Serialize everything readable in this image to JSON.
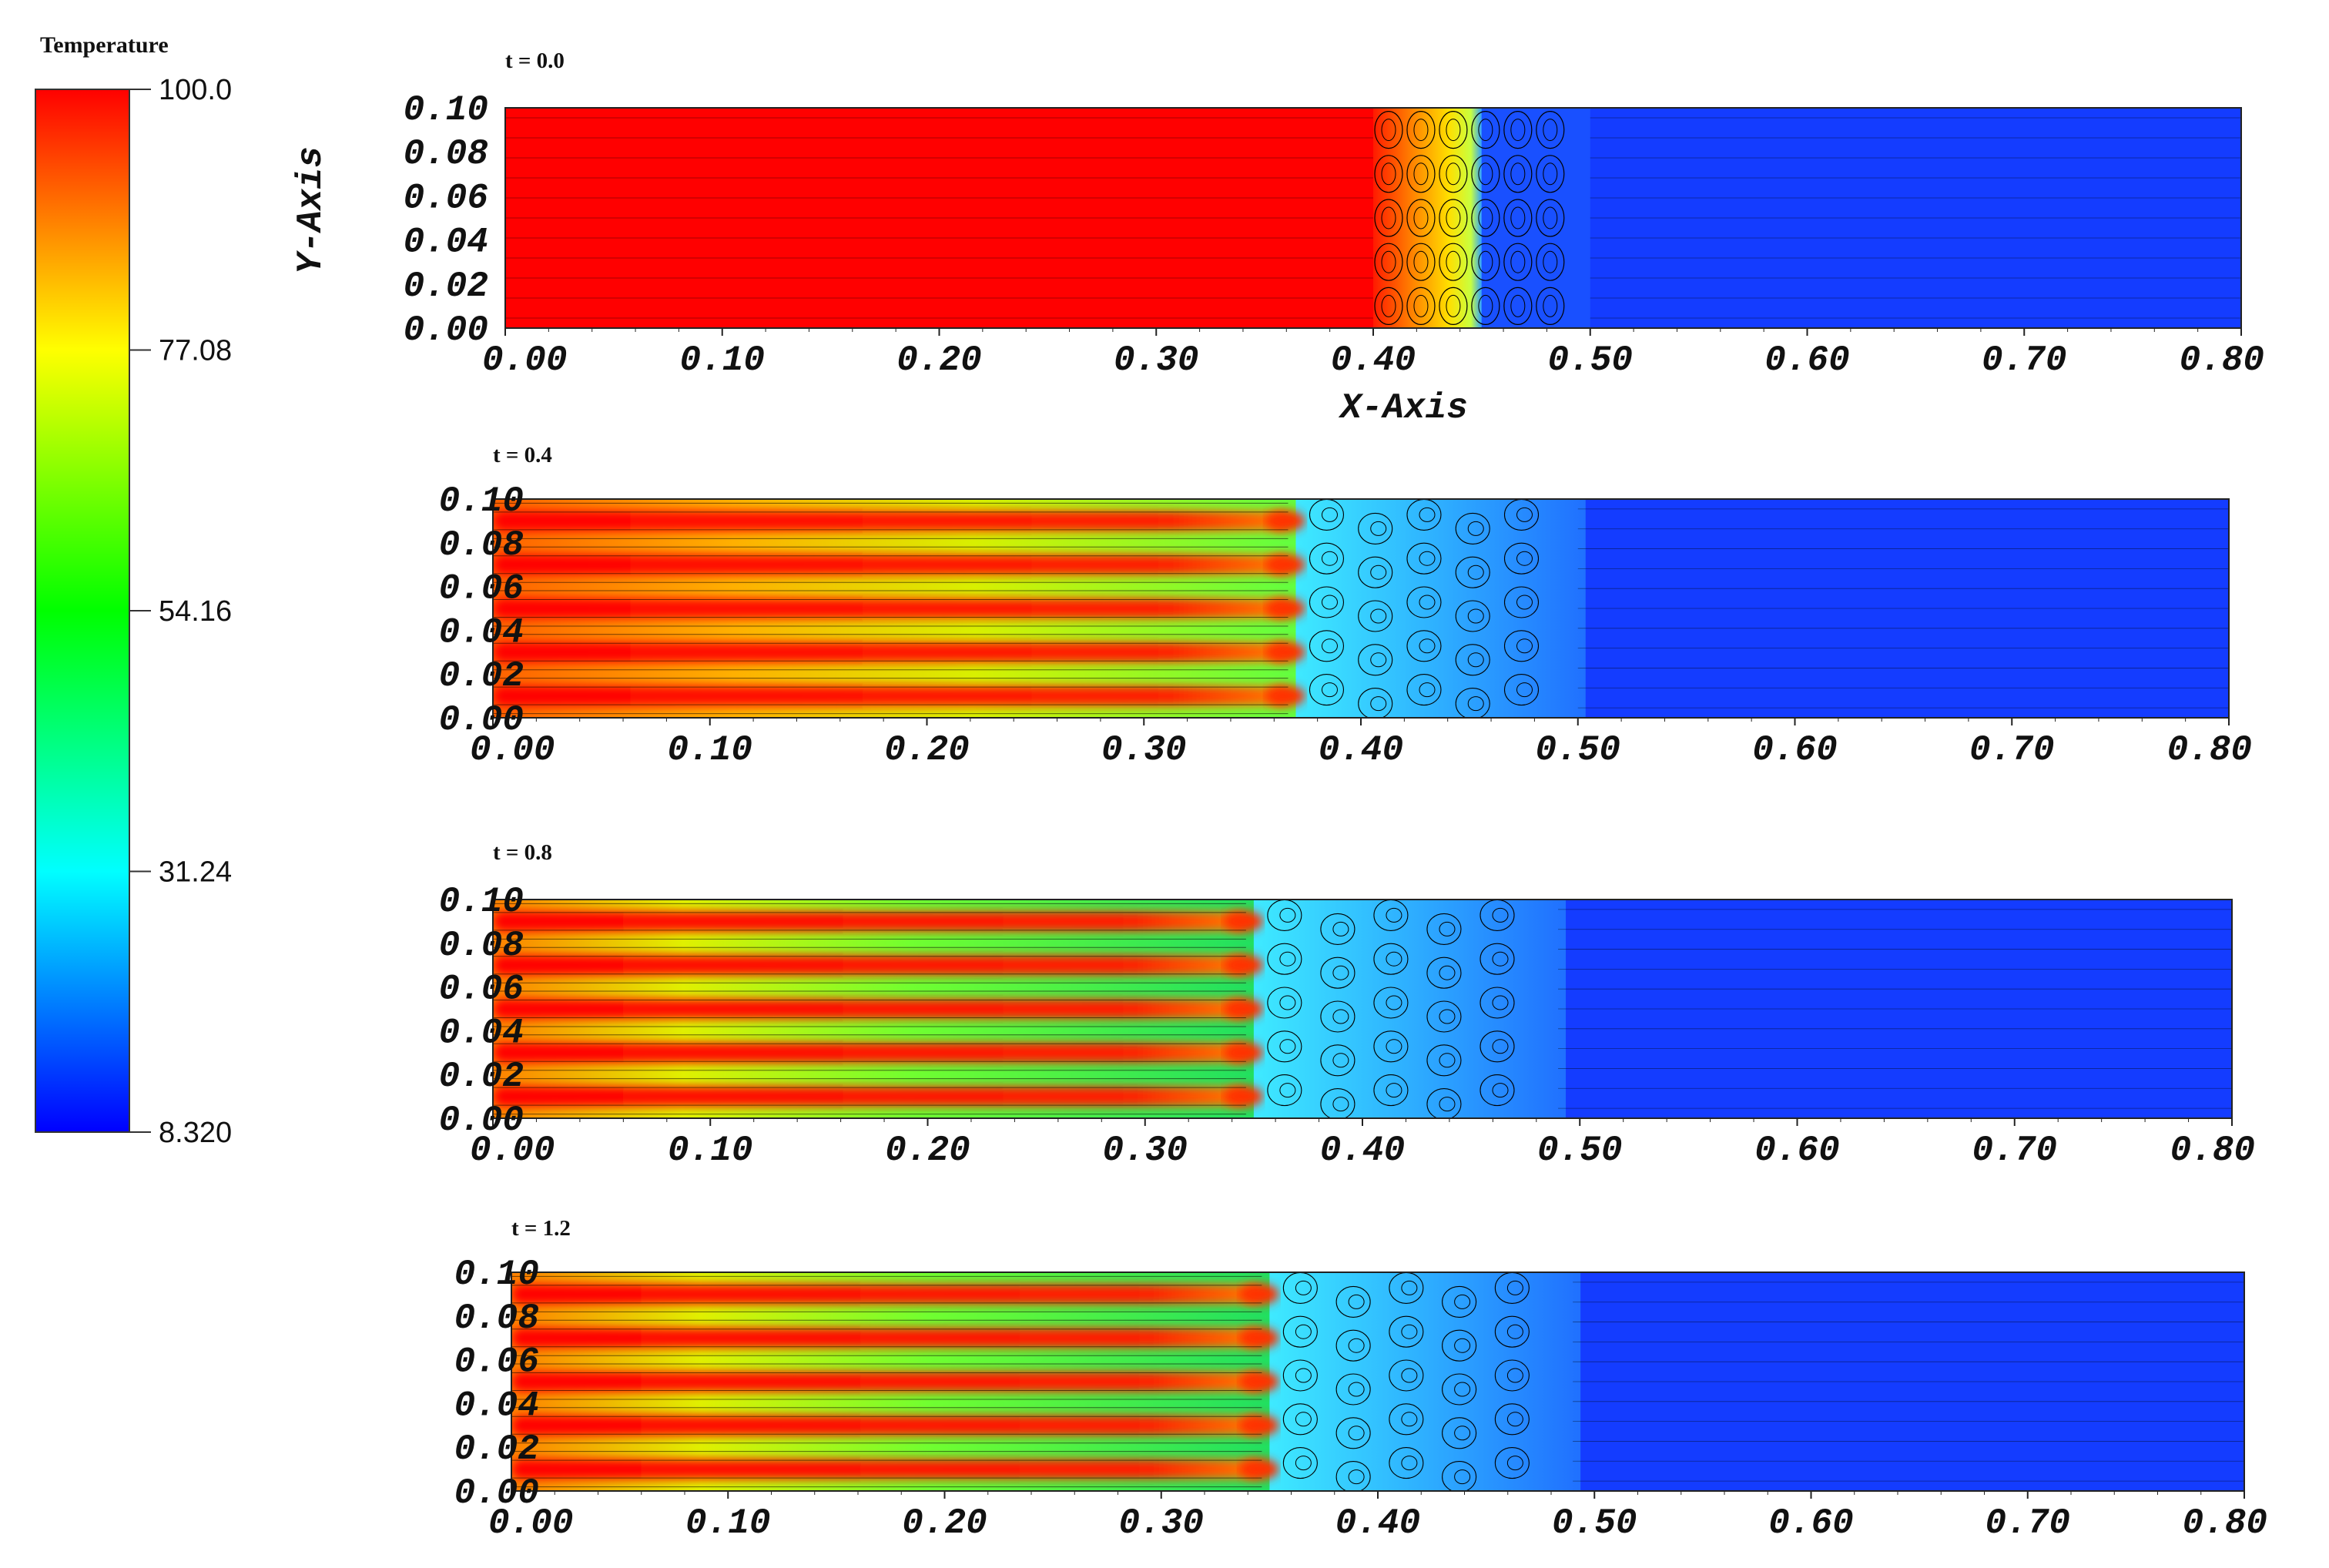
{
  "colorbar": {
    "title": "Temperature",
    "ticks": [
      "100.0",
      "77.08",
      "54.16",
      "31.24",
      "8.320"
    ],
    "min": 8.32,
    "max": 100.0,
    "colormap": [
      "#ff0000",
      "#ffff00",
      "#00ff00",
      "#00ffff",
      "#0000ff"
    ]
  },
  "axes": {
    "xlabel": "X-Axis",
    "ylabel": "Y-Axis",
    "xticks": [
      "0.00",
      "0.10",
      "0.20",
      "0.30",
      "0.40",
      "0.50",
      "0.60",
      "0.70",
      "0.80"
    ],
    "yticks": [
      "0.00",
      "0.02",
      "0.04",
      "0.06",
      "0.08",
      "0.10"
    ]
  },
  "chart_data": [
    {
      "type": "heatmap",
      "title": "t = 0.0",
      "xlim": [
        0,
        0.8
      ],
      "ylim": [
        0,
        0.1
      ],
      "xlabel": "X-Axis",
      "ylabel": "Y-Axis",
      "stripes_y": [
        0.01,
        0.03,
        0.05,
        0.07,
        0.09
      ],
      "front_x": 0.4,
      "front_end_x": 0.45,
      "mixing_end_x": 0.5,
      "front_temp": 100.0,
      "ambient_temp": 8.32
    },
    {
      "type": "heatmap",
      "title": "t = 0.4",
      "xlim": [
        0,
        0.8
      ],
      "ylim": [
        0,
        0.1
      ],
      "xlabel": "",
      "ylabel": "",
      "stripes_y": [
        0.01,
        0.03,
        0.05,
        0.07,
        0.09
      ],
      "finger_tip_x": 0.37,
      "mixing_end_x": 0.5,
      "ambient_temp": 8.32
    },
    {
      "type": "heatmap",
      "title": "t = 0.8",
      "xlim": [
        0,
        0.8
      ],
      "ylim": [
        0,
        0.1
      ],
      "xlabel": "",
      "ylabel": "",
      "stripes_y": [
        0.01,
        0.03,
        0.05,
        0.07,
        0.09
      ],
      "finger_tip_x": 0.35,
      "mixing_end_x": 0.49,
      "ambient_temp": 8.32
    },
    {
      "type": "heatmap",
      "title": "t = 1.2",
      "xlim": [
        0,
        0.8
      ],
      "ylim": [
        0,
        0.1
      ],
      "xlabel": "",
      "ylabel": "",
      "stripes_y": [
        0.01,
        0.03,
        0.05,
        0.07,
        0.09
      ],
      "finger_tip_x": 0.35,
      "mixing_end_x": 0.49,
      "ambient_temp": 8.32
    }
  ]
}
